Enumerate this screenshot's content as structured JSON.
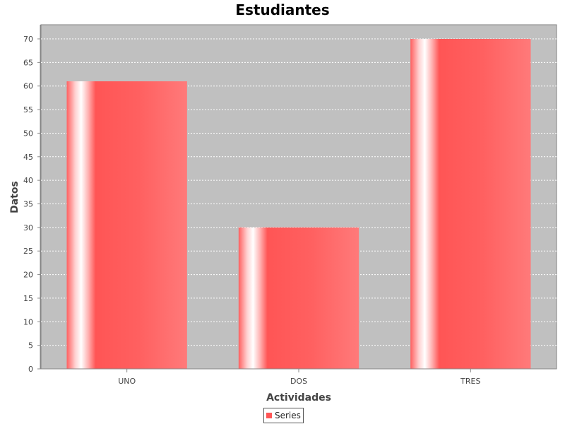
{
  "chart_data": {
    "type": "bar",
    "title": "Estudiantes",
    "xlabel": "Actividades",
    "ylabel": "Datos",
    "categories": [
      "UNO",
      "DOS",
      "TRES"
    ],
    "series": [
      {
        "name": "Series",
        "values": [
          61,
          30,
          70
        ],
        "color": "#ff5555"
      }
    ],
    "ylim": [
      0,
      73
    ],
    "yticks": [
      0,
      5,
      10,
      15,
      20,
      25,
      30,
      35,
      40,
      45,
      50,
      55,
      60,
      65,
      70
    ],
    "grid": true,
    "legend": "bottom-center",
    "plot_background": "#c0c0c0"
  }
}
